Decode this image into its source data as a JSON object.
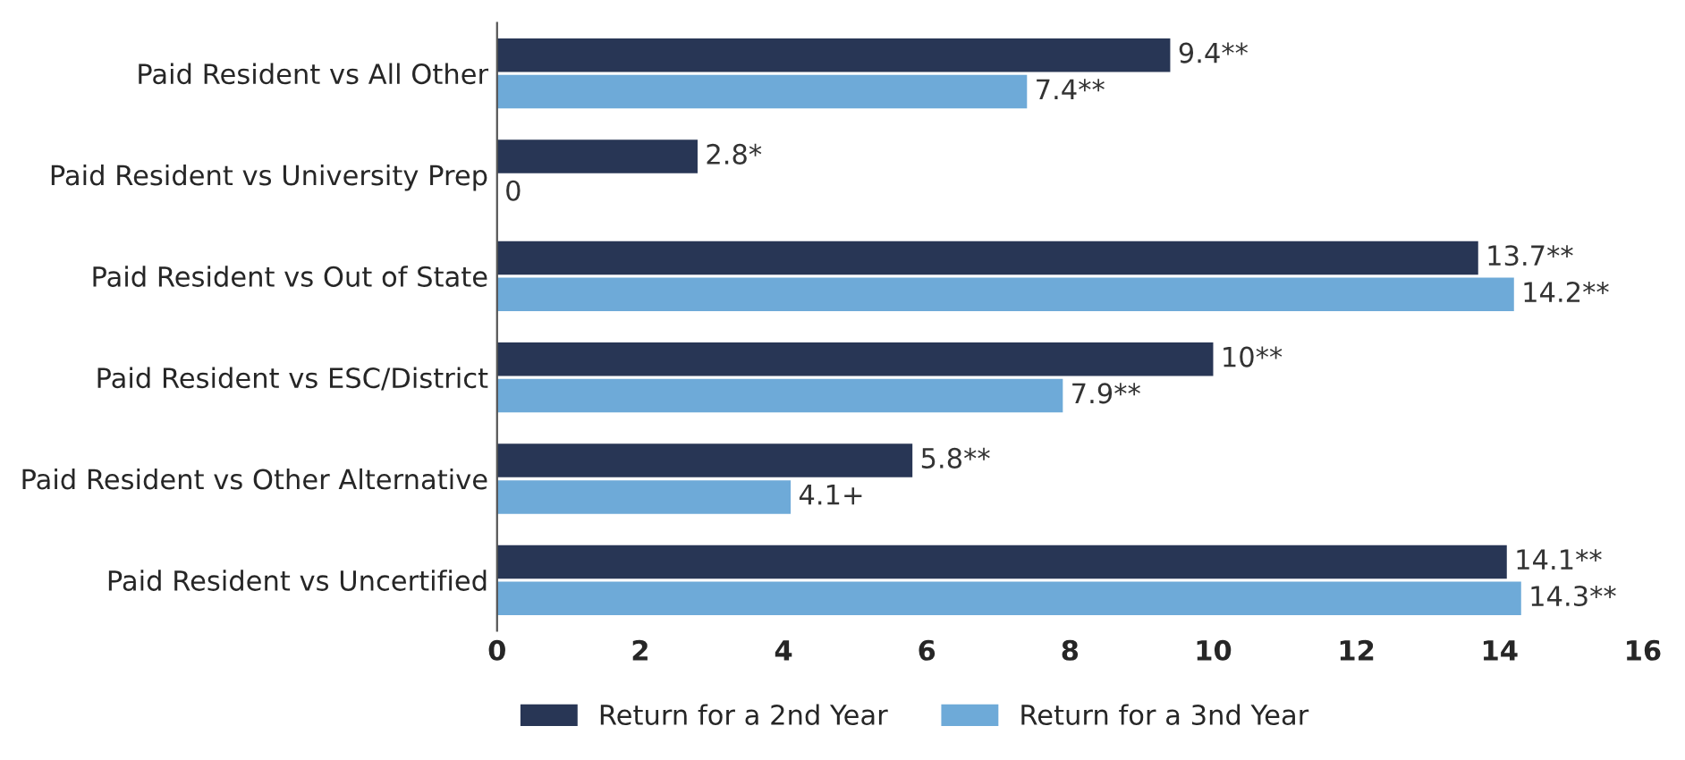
{
  "chart_data": {
    "type": "bar",
    "orientation": "horizontal",
    "categories": [
      "Paid Resident vs All Other",
      "Paid Resident vs University Prep",
      "Paid Resident vs Out of State",
      "Paid Resident vs ESC/District",
      "Paid Resident vs Other Alternative",
      "Paid Resident vs Uncertified"
    ],
    "series": [
      {
        "name": "Return for a 2nd Year",
        "color": "#283655",
        "values": [
          9.4,
          2.8,
          13.7,
          10,
          5.8,
          14.1
        ],
        "value_labels": [
          "9.4**",
          "2.8*",
          "13.7**",
          "10**",
          "5.8**",
          "14.1**"
        ]
      },
      {
        "name": "Return for a 3nd Year",
        "color": "#6eaad8",
        "values": [
          7.4,
          0,
          14.2,
          7.9,
          4.1,
          14.3
        ],
        "value_labels": [
          "7.4**",
          "0",
          "14.2**",
          "7.9**",
          "4.1+",
          "14.3**"
        ]
      }
    ],
    "xlim": [
      0,
      16
    ],
    "xticks": [
      0,
      2,
      4,
      6,
      8,
      10,
      12,
      14,
      16
    ],
    "legend": "bottom",
    "grid": false
  }
}
